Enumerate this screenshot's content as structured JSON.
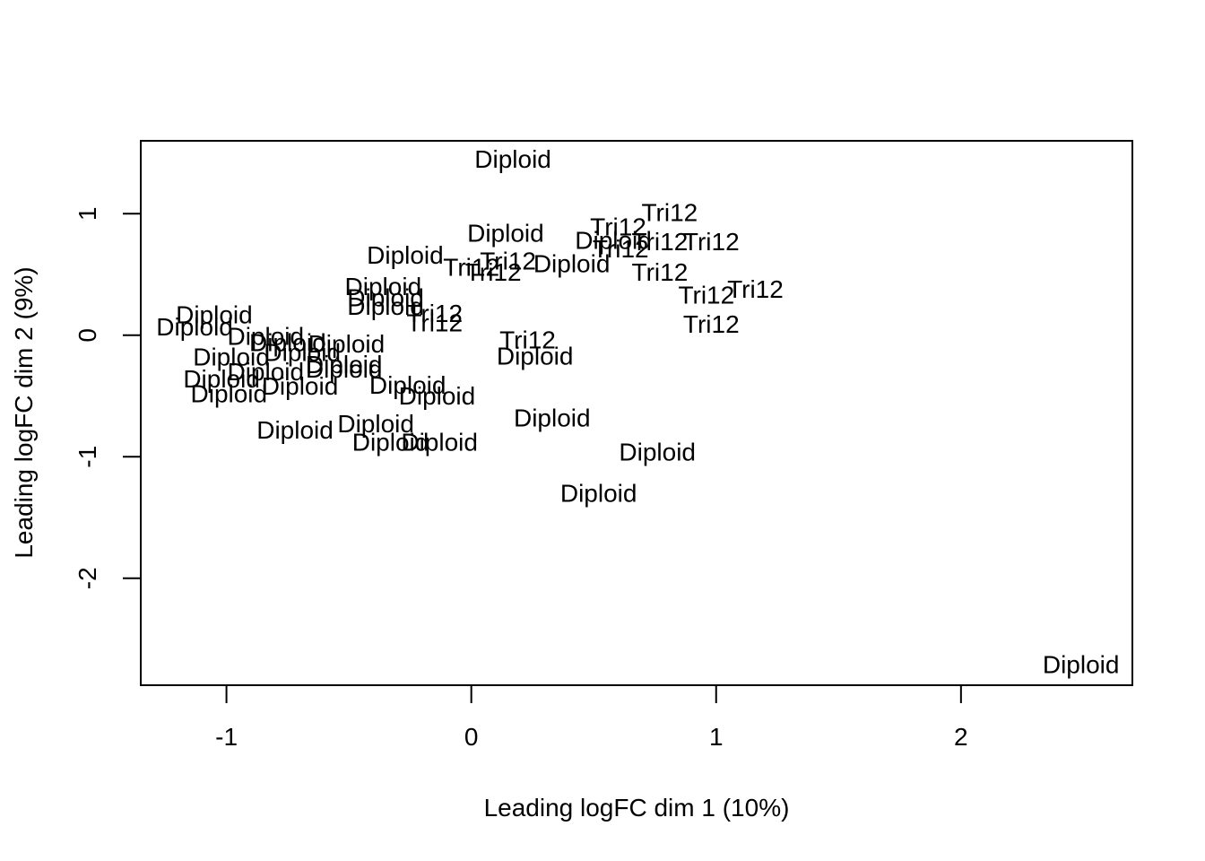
{
  "chart_data": {
    "type": "scatter",
    "title": "",
    "xlabel": "Leading logFC dim 1 (10%)",
    "ylabel": "Leading logFC dim 2 (9%)",
    "xlim": [
      -1.35,
      2.7
    ],
    "ylim": [
      -2.88,
      1.6
    ],
    "xticks": [
      -1,
      0,
      1,
      2
    ],
    "yticks": [
      -2,
      -1,
      0,
      1
    ],
    "tick_labels_x": [
      "-1",
      "0",
      "1",
      "2"
    ],
    "tick_labels_y": [
      "-2",
      "-1",
      "0",
      "1"
    ],
    "grid": false,
    "legend": "none",
    "point_style": "text labels",
    "points": [
      {
        "x": 0.17,
        "y": 1.45,
        "label": "Diploid"
      },
      {
        "x": 0.14,
        "y": 0.84,
        "label": "Diploid"
      },
      {
        "x": -0.27,
        "y": 0.66,
        "label": "Diploid"
      },
      {
        "x": 0.81,
        "y": 1.01,
        "label": "Tri12"
      },
      {
        "x": 0.6,
        "y": 0.89,
        "label": "Tri12"
      },
      {
        "x": 0.58,
        "y": 0.78,
        "label": "Diploid"
      },
      {
        "x": 0.77,
        "y": 0.77,
        "label": "Tri12"
      },
      {
        "x": 0.98,
        "y": 0.77,
        "label": "Tri12"
      },
      {
        "x": 0.61,
        "y": 0.71,
        "label": "Tri12"
      },
      {
        "x": 0.41,
        "y": 0.59,
        "label": "Diploid"
      },
      {
        "x": 0.15,
        "y": 0.61,
        "label": "Tri12"
      },
      {
        "x": 0.0,
        "y": 0.56,
        "label": "Tri12"
      },
      {
        "x": 0.09,
        "y": 0.52,
        "label": "Tri12"
      },
      {
        "x": 0.77,
        "y": 0.52,
        "label": "Tri12"
      },
      {
        "x": -0.36,
        "y": 0.4,
        "label": "Diploid"
      },
      {
        "x": 1.16,
        "y": 0.38,
        "label": "Tri12"
      },
      {
        "x": 0.96,
        "y": 0.33,
        "label": "Tri12"
      },
      {
        "x": -0.35,
        "y": 0.31,
        "label": "Diploid"
      },
      {
        "x": -0.35,
        "y": 0.24,
        "label": "Diploid"
      },
      {
        "x": -0.15,
        "y": 0.18,
        "label": "Tri12"
      },
      {
        "x": -0.15,
        "y": 0.1,
        "label": "Tri12"
      },
      {
        "x": 0.98,
        "y": 0.09,
        "label": "Tri12"
      },
      {
        "x": -1.05,
        "y": 0.17,
        "label": "Diploid"
      },
      {
        "x": -1.13,
        "y": 0.07,
        "label": "Diploid"
      },
      {
        "x": -0.84,
        "y": -0.01,
        "label": "Diploid"
      },
      {
        "x": -0.75,
        "y": -0.06,
        "label": "Diploid"
      },
      {
        "x": -0.51,
        "y": -0.07,
        "label": "Diploid"
      },
      {
        "x": 0.23,
        "y": -0.04,
        "label": "Tri12"
      },
      {
        "x": -0.69,
        "y": -0.14,
        "label": "Diploid"
      },
      {
        "x": -0.98,
        "y": -0.18,
        "label": "Diploid"
      },
      {
        "x": 0.26,
        "y": -0.17,
        "label": "Diploid"
      },
      {
        "x": -0.84,
        "y": -0.3,
        "label": "Diploid"
      },
      {
        "x": -0.52,
        "y": -0.24,
        "label": "Diploid"
      },
      {
        "x": -0.52,
        "y": -0.28,
        "label": "Diploid"
      },
      {
        "x": -1.02,
        "y": -0.36,
        "label": "Diploid"
      },
      {
        "x": -0.7,
        "y": -0.42,
        "label": "Diploid"
      },
      {
        "x": -0.26,
        "y": -0.41,
        "label": "Diploid"
      },
      {
        "x": -0.14,
        "y": -0.5,
        "label": "Diploid"
      },
      {
        "x": -0.99,
        "y": -0.48,
        "label": "Diploid"
      },
      {
        "x": 0.33,
        "y": -0.68,
        "label": "Diploid"
      },
      {
        "x": -0.39,
        "y": -0.73,
        "label": "Diploid"
      },
      {
        "x": -0.72,
        "y": -0.78,
        "label": "Diploid"
      },
      {
        "x": -0.33,
        "y": -0.88,
        "label": "Diploid"
      },
      {
        "x": -0.13,
        "y": -0.88,
        "label": "Diploid"
      },
      {
        "x": 0.76,
        "y": -0.96,
        "label": "Diploid"
      },
      {
        "x": 0.52,
        "y": -1.3,
        "label": "Diploid"
      },
      {
        "x": 2.49,
        "y": -2.71,
        "label": "Diploid"
      }
    ]
  }
}
